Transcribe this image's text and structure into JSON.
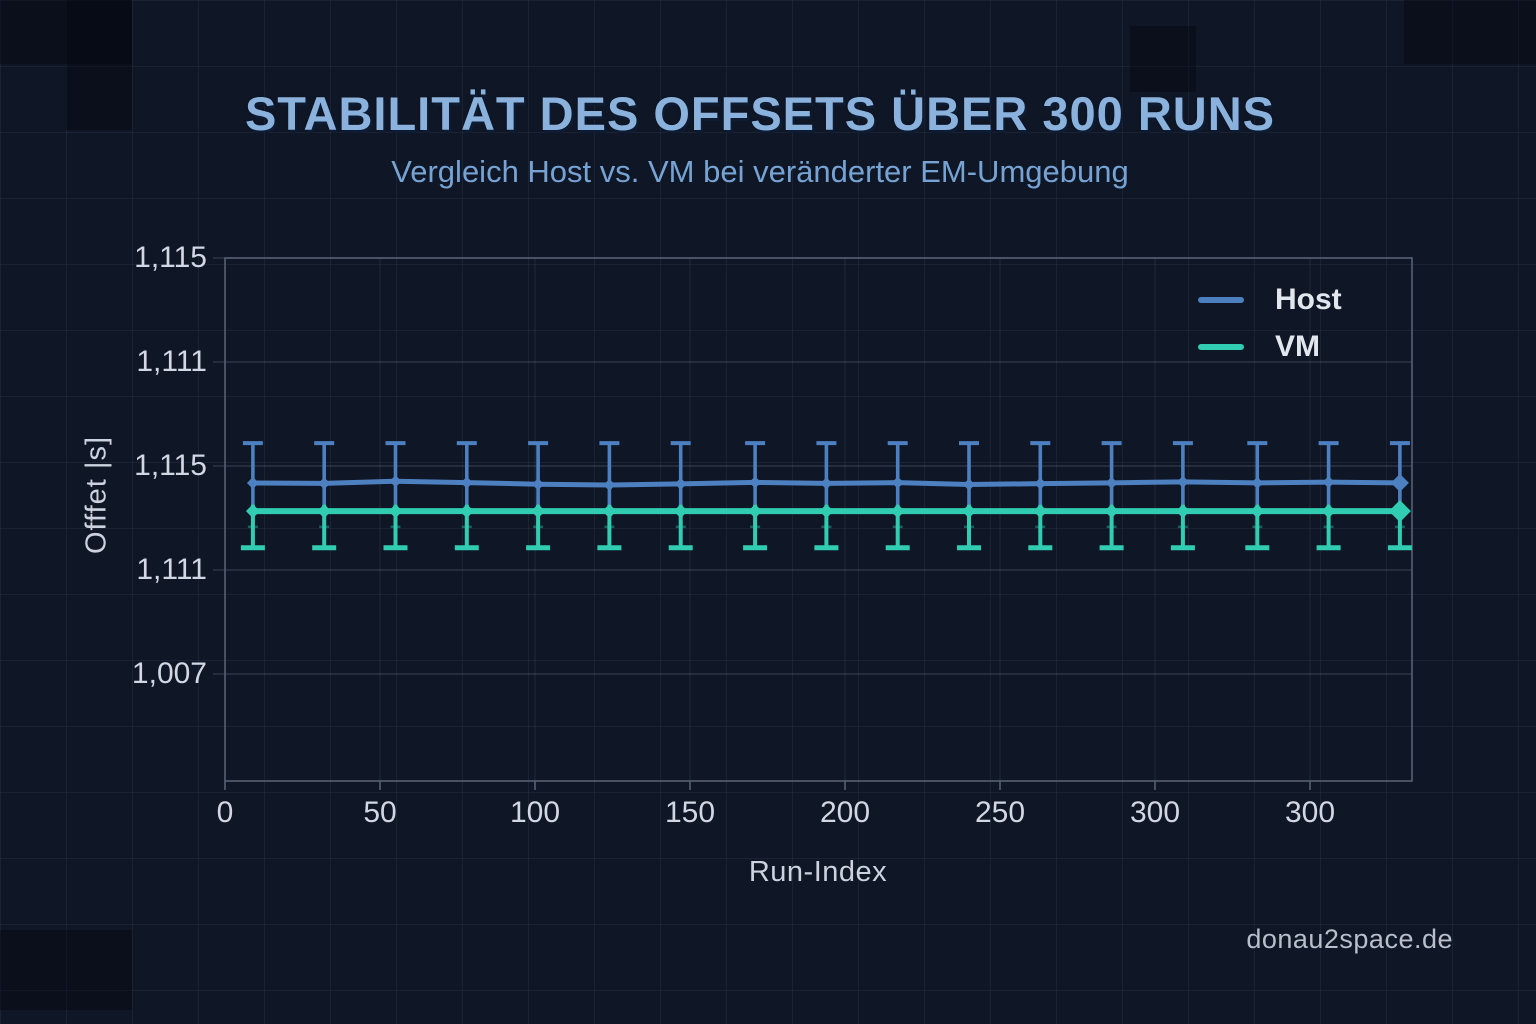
{
  "header": {
    "title": "STABILITÄT DES OFFSETS ÜBER 300 RUNS",
    "subtitle": "Vergleich Host vs. VM bei veränderter EM-Umgebung"
  },
  "watermark": "donau2space.de",
  "chart_data": {
    "type": "line",
    "title": "STABILITÄT DES OFFSETS ÜBER 300 RUNS",
    "subtitle": "Vergleich Host vs. VM bei veränderter EM-Umgebung",
    "xlabel": "Run-Index",
    "ylabel": "Offfet |s]",
    "x_tick_labels": [
      "0",
      "50",
      "100",
      "150",
      "200",
      "250",
      "300",
      "300"
    ],
    "y_tick_labels": [
      "1,115",
      "1,111",
      "1,115",
      "1,111",
      "1,007"
    ],
    "xlim": [
      0,
      383
    ],
    "grid": true,
    "legend_position": "upper right",
    "x": [
      9,
      32,
      55,
      78,
      101,
      124,
      147,
      171,
      194,
      217,
      240,
      263,
      286,
      309,
      333,
      356,
      379
    ],
    "series": [
      {
        "name": "Host",
        "color": "#4d80c0",
        "marker": "diamond",
        "y_frac_from_plot_top": [
          0.4302,
          0.431,
          0.4268,
          0.4295,
          0.4325,
          0.434,
          0.432,
          0.429,
          0.431,
          0.4295,
          0.433,
          0.4315,
          0.43,
          0.428,
          0.43,
          0.4285,
          0.43
        ]
      },
      {
        "name": "VM",
        "color": "#31cdb2",
        "marker": "diamond",
        "y_frac_from_plot_top": [
          0.484,
          0.484,
          0.484,
          0.484,
          0.484,
          0.484,
          0.484,
          0.484,
          0.484,
          0.484,
          0.484,
          0.484,
          0.484,
          0.484,
          0.484,
          0.484,
          0.484
        ]
      }
    ],
    "error_bars": {
      "top_cap_frac": 0.354,
      "blue_lower_frac": 0.493,
      "teal_upper_frac": 0.472,
      "inner_tick_frac": 0.514,
      "bottom_cap_frac": 0.554
    },
    "colors": {
      "frame": "#566074",
      "gridline": "rgba(150,162,188,0.26)",
      "gridline_vertical": "rgba(150,162,188,0.12)",
      "tick_text": "#d2d8e3"
    }
  }
}
